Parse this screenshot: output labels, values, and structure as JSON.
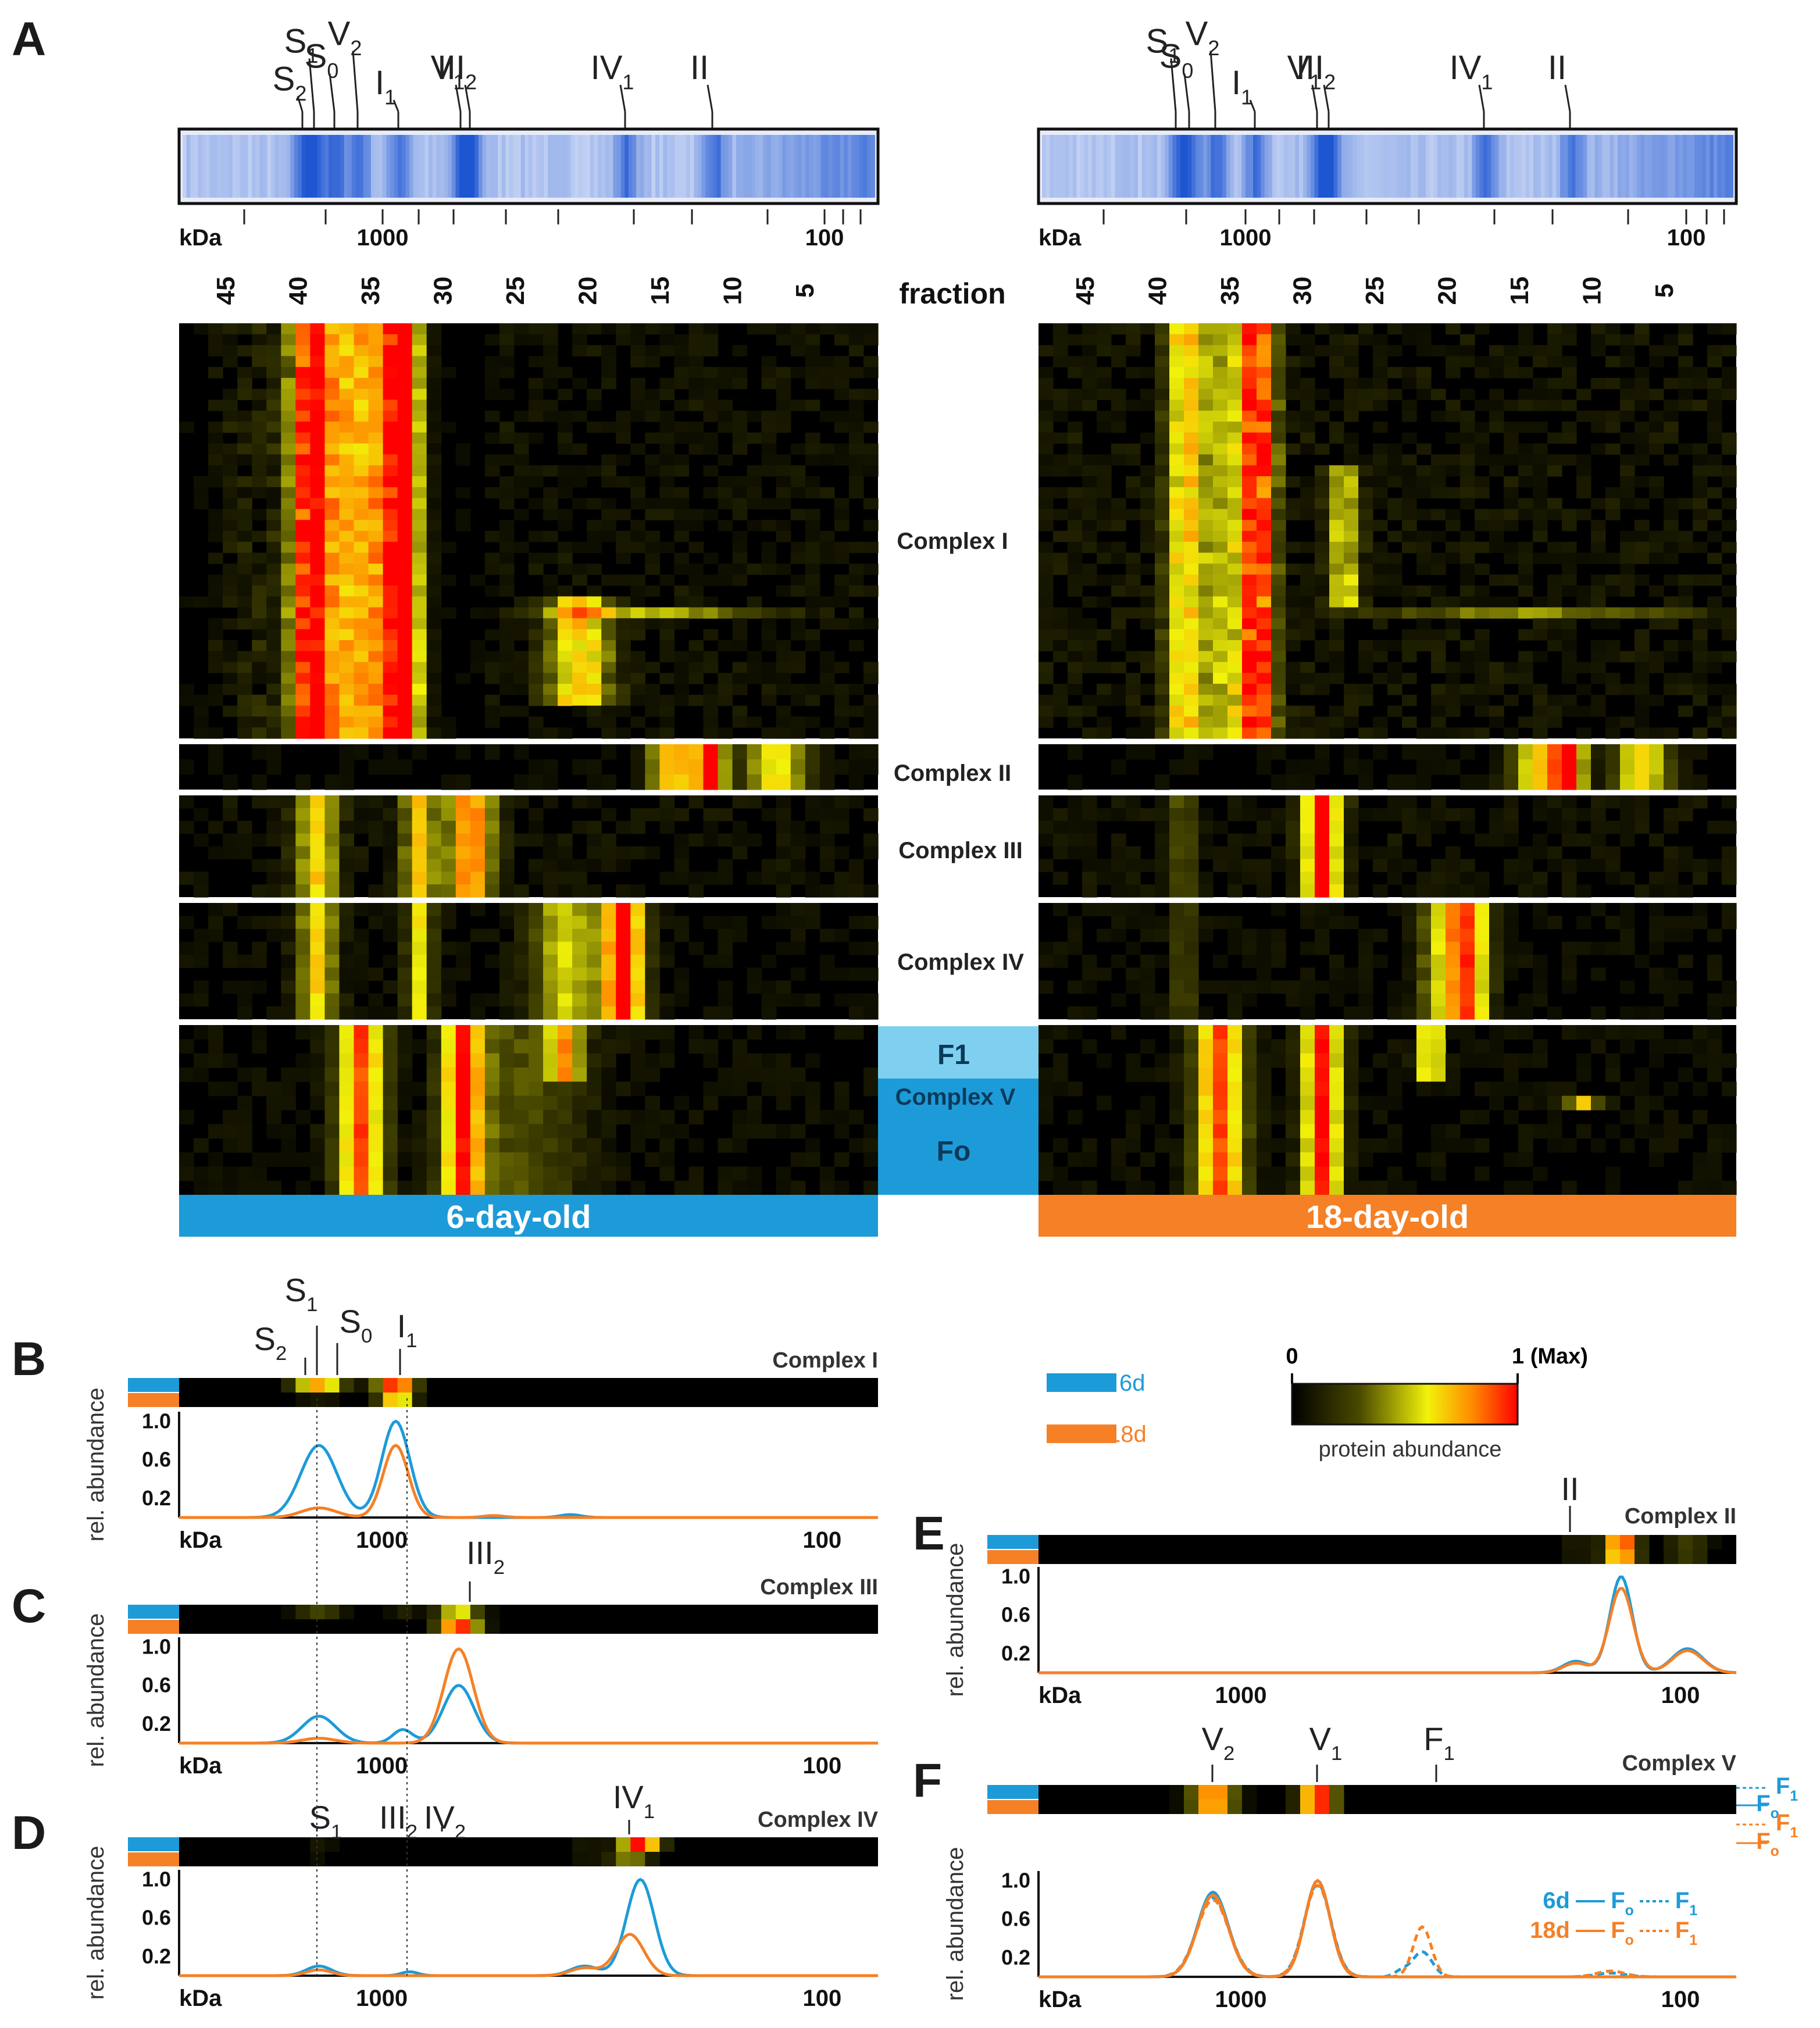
{
  "colors": {
    "young": "#1d9bd8",
    "old": "#f58026",
    "F1_box": "#7fd0f0",
    "Fo_box": "#1d9bd8",
    "gel": "#2f5fd6",
    "heat_lo": "#000000",
    "heat_mid": "#f2f20a",
    "heat_hi": "#ff0000"
  },
  "panels": {
    "A": "A",
    "B": "B",
    "C": "C",
    "D": "D",
    "E": "E",
    "F": "F"
  },
  "gel": {
    "kda_label": "kDa",
    "kda_ticks": [
      "1000",
      "100"
    ],
    "fraction_label": "fraction",
    "fraction_numbers": [
      "45",
      "40",
      "35",
      "30",
      "25",
      "20",
      "15",
      "10",
      "5"
    ],
    "left_bands": [
      {
        "base": "S",
        "sub": "2"
      },
      {
        "base": "S",
        "sub": "1"
      },
      {
        "base": "S",
        "sub": "0"
      },
      {
        "base": "V",
        "sub": "2"
      },
      {
        "base": "I",
        "sub": "1"
      },
      {
        "base": "V",
        "sub": "1"
      },
      {
        "base": "III",
        "sub": "2"
      },
      {
        "base": "IV",
        "sub": "1"
      },
      {
        "base": "II",
        "sub": ""
      }
    ],
    "right_bands": [
      {
        "base": "S",
        "sub": "1"
      },
      {
        "base": "S",
        "sub": "0"
      },
      {
        "base": "V",
        "sub": "2"
      },
      {
        "base": "I",
        "sub": "1"
      },
      {
        "base": "V",
        "sub": "1"
      },
      {
        "base": "III",
        "sub": "2"
      },
      {
        "base": "IV",
        "sub": "1"
      },
      {
        "base": "II",
        "sub": ""
      }
    ]
  },
  "heatmap_blocks": [
    "Complex I",
    "Complex II",
    "Complex III",
    "Complex IV",
    "Complex V"
  ],
  "complex_v_parts": {
    "f1": "F1",
    "complex": "Complex V",
    "fo": "Fo"
  },
  "age_bands": {
    "young": "6-day-old",
    "old": "18-day-old"
  },
  "legend": {
    "young": "6d",
    "old": "18d",
    "scale_min": "0",
    "scale_max": "1 (Max)",
    "scale_caption": "protein abundance"
  },
  "profile_axis": {
    "ylabel": "rel. abundance",
    "yticks": [
      "1.0",
      "0.6",
      "0.2"
    ],
    "xlabel": "kDa",
    "xticks": [
      "1000",
      "100"
    ]
  },
  "profiles": {
    "B": {
      "complex": "Complex I",
      "markers": [
        {
          "base": "S",
          "sub": "2"
        },
        {
          "base": "S",
          "sub": "1"
        },
        {
          "base": "S",
          "sub": "0"
        },
        {
          "base": "I",
          "sub": "1"
        }
      ]
    },
    "C": {
      "complex": "Complex III",
      "markers": [
        {
          "base": "III",
          "sub": "2"
        }
      ]
    },
    "D": {
      "complex": "Complex IV",
      "markers": [
        {
          "base": "S",
          "sub": "1"
        },
        {
          "base": "III",
          "sub": "2"
        },
        {
          "base": "IV",
          "sub": "2"
        },
        {
          "base": "IV",
          "sub": "1"
        }
      ]
    },
    "E": {
      "complex": "Complex II",
      "markers": [
        {
          "base": "II",
          "sub": ""
        }
      ]
    },
    "F": {
      "complex": "Complex V",
      "markers": [
        {
          "base": "V",
          "sub": "2"
        },
        {
          "base": "V",
          "sub": "1"
        },
        {
          "base": "F",
          "sub": "1"
        }
      ],
      "side_labels": [
        {
          "base": "F",
          "sub": "1"
        },
        {
          "base": "F",
          "sub": "o"
        },
        {
          "base": "F",
          "sub": "1"
        },
        {
          "base": "F",
          "sub": "o"
        }
      ],
      "legend": {
        "young": "6d",
        "old": "18d",
        "solid": "F",
        "solid_sub": "o",
        "dotted": "F",
        "dotted_sub": "1"
      }
    }
  },
  "chart_data": [
    {
      "type": "line",
      "panel": "B",
      "title": "Complex I",
      "xlabel": "kDa",
      "ylabel": "rel. abundance",
      "ylim": [
        0,
        1.1
      ],
      "xlim": [
        0,
        100
      ],
      "series": [
        {
          "name": "6d",
          "color": "#1d9bd8",
          "peaks": [
            {
              "x": 20,
              "h": 0.75,
              "w": 2.6
            },
            {
              "x": 31,
              "h": 1.0,
              "w": 2.0
            },
            {
              "x": 56,
              "h": 0.03,
              "w": 1.5
            }
          ]
        },
        {
          "name": "18d",
          "color": "#f58026",
          "peaks": [
            {
              "x": 20,
              "h": 0.1,
              "w": 2.5
            },
            {
              "x": 31,
              "h": 0.75,
              "w": 1.8
            },
            {
              "x": 45,
              "h": 0.02,
              "w": 1.5
            }
          ]
        }
      ]
    },
    {
      "type": "line",
      "panel": "C",
      "title": "Complex III",
      "xlabel": "kDa",
      "ylabel": "rel. abundance",
      "ylim": [
        0,
        1.1
      ],
      "xlim": [
        0,
        100
      ],
      "series": [
        {
          "name": "6d",
          "color": "#1d9bd8",
          "peaks": [
            {
              "x": 20,
              "h": 0.28,
              "w": 2.4
            },
            {
              "x": 32,
              "h": 0.14,
              "w": 1.4
            },
            {
              "x": 40,
              "h": 0.6,
              "w": 2.2
            }
          ]
        },
        {
          "name": "18d",
          "color": "#f58026",
          "peaks": [
            {
              "x": 20,
              "h": 0.05,
              "w": 2.4
            },
            {
              "x": 40,
              "h": 0.98,
              "w": 2.1
            }
          ]
        }
      ]
    },
    {
      "type": "line",
      "panel": "D",
      "title": "Complex IV",
      "xlabel": "kDa",
      "ylabel": "rel. abundance",
      "ylim": [
        0,
        1.1
      ],
      "xlim": [
        0,
        100
      ],
      "series": [
        {
          "name": "6d",
          "color": "#1d9bd8",
          "peaks": [
            {
              "x": 20,
              "h": 0.1,
              "w": 1.8
            },
            {
              "x": 33,
              "h": 0.04,
              "w": 1.2
            },
            {
              "x": 58,
              "h": 0.1,
              "w": 2.0
            },
            {
              "x": 66,
              "h": 1.0,
              "w": 2.0
            }
          ]
        },
        {
          "name": "18d",
          "color": "#f58026",
          "peaks": [
            {
              "x": 20,
              "h": 0.06,
              "w": 1.8
            },
            {
              "x": 58,
              "h": 0.08,
              "w": 2.0
            },
            {
              "x": 64.5,
              "h": 0.43,
              "w": 2.0
            }
          ]
        }
      ]
    },
    {
      "type": "line",
      "panel": "E",
      "title": "Complex II",
      "xlabel": "kDa",
      "ylabel": "rel. abundance",
      "ylim": [
        0,
        1.1
      ],
      "xlim": [
        0,
        100
      ],
      "series": [
        {
          "name": "6d",
          "color": "#1d9bd8",
          "peaks": [
            {
              "x": 77,
              "h": 0.12,
              "w": 1.8
            },
            {
              "x": 83.5,
              "h": 1.0,
              "w": 1.6
            },
            {
              "x": 93,
              "h": 0.25,
              "w": 2.2
            }
          ]
        },
        {
          "name": "18d",
          "color": "#f58026",
          "peaks": [
            {
              "x": 77,
              "h": 0.1,
              "w": 1.8
            },
            {
              "x": 83.5,
              "h": 0.88,
              "w": 1.7
            },
            {
              "x": 93,
              "h": 0.23,
              "w": 2.2
            }
          ]
        }
      ]
    },
    {
      "type": "line",
      "panel": "F",
      "title": "Complex V",
      "xlabel": "kDa",
      "ylabel": "rel. abundance",
      "ylim": [
        0,
        1.1
      ],
      "xlim": [
        0,
        100
      ],
      "series": [
        {
          "name": "6d Fo",
          "color": "#1d9bd8",
          "dash": false,
          "peaks": [
            {
              "x": 25,
              "h": 0.88,
              "w": 2.2
            },
            {
              "x": 40,
              "h": 1.0,
              "w": 1.8
            }
          ]
        },
        {
          "name": "6d F1",
          "color": "#1d9bd8",
          "dash": true,
          "peaks": [
            {
              "x": 25,
              "h": 0.82,
              "w": 2.3
            },
            {
              "x": 40,
              "h": 0.97,
              "w": 1.9
            },
            {
              "x": 55,
              "h": 0.26,
              "w": 1.4
            },
            {
              "x": 52,
              "h": 0.06,
              "w": 1.0
            },
            {
              "x": 82,
              "h": 0.04,
              "w": 2.0
            }
          ]
        },
        {
          "name": "18d Fo",
          "color": "#f58026",
          "dash": false,
          "peaks": [
            {
              "x": 25,
              "h": 0.85,
              "w": 2.2
            },
            {
              "x": 40,
              "h": 1.0,
              "w": 1.8
            }
          ]
        },
        {
          "name": "18d F1",
          "color": "#f58026",
          "dash": true,
          "peaks": [
            {
              "x": 25,
              "h": 0.8,
              "w": 2.3
            },
            {
              "x": 40,
              "h": 0.95,
              "w": 1.9
            },
            {
              "x": 55,
              "h": 0.52,
              "w": 1.3
            },
            {
              "x": 82,
              "h": 0.06,
              "w": 2.0
            }
          ]
        }
      ]
    }
  ]
}
